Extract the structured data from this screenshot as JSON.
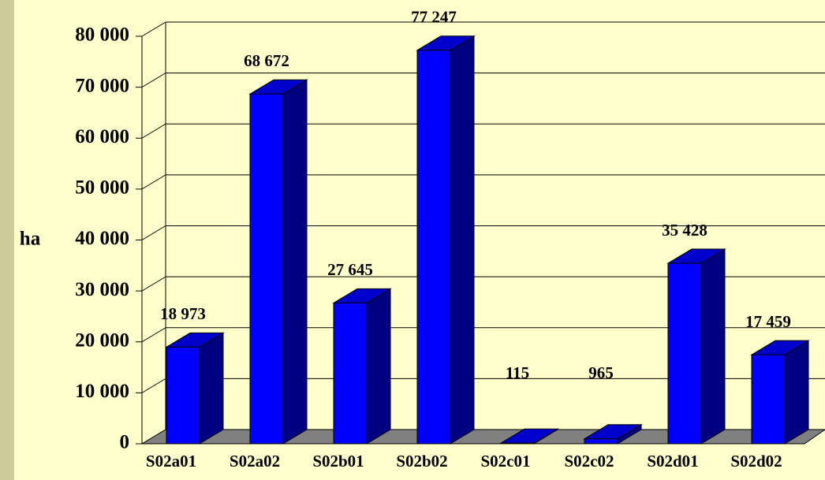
{
  "chart_data": {
    "type": "bar3d",
    "y_label": "ha",
    "categories": [
      "S02a01",
      "S02a02",
      "S02b01",
      "S02b02",
      "S02c01",
      "S02c02",
      "S02d01",
      "S02d02"
    ],
    "values": [
      18973,
      68672,
      27645,
      77247,
      115,
      965,
      35428,
      17459
    ],
    "value_labels": [
      "18 973",
      "68 672",
      "27 645",
      "77 247",
      "115",
      "965",
      "35 428",
      "17 459"
    ],
    "color": "#0000ff",
    "ylim": [
      0,
      80000
    ],
    "yticks": [
      0,
      {
        "value": 10000,
        "label": "10 000"
      },
      {
        "value": 20000,
        "label": "20 000"
      },
      {
        "value": 30000,
        "label": "30 000"
      },
      {
        "value": 40000,
        "label": "40 000"
      },
      {
        "value": 50000,
        "label": "50 000"
      },
      {
        "value": 60000,
        "label": "60 000"
      },
      {
        "value": 70000,
        "label": "70 000"
      },
      {
        "value": 80000,
        "label": "80 000"
      }
    ],
    "grid": true
  }
}
